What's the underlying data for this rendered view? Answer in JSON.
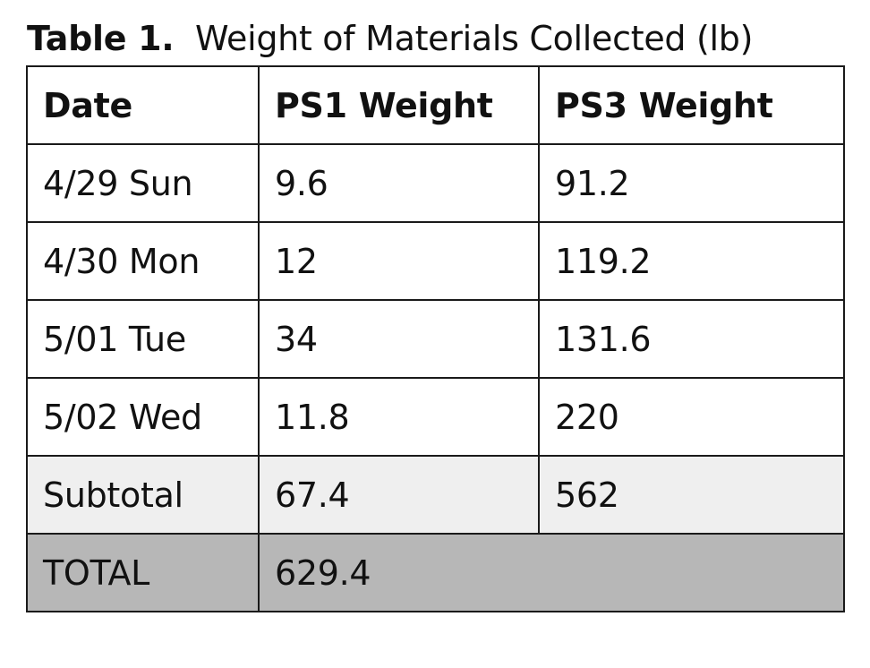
{
  "caption": {
    "label": "Table 1.",
    "text": "Weight of Materials Collected (lb)"
  },
  "table": {
    "headers": [
      "Date",
      "PS1 Weight",
      "PS3 Weight"
    ],
    "rows": [
      [
        "4/29 Sun",
        "9.6",
        "91.2"
      ],
      [
        "4/30 Mon",
        "12",
        "119.2"
      ],
      [
        "5/01 Tue",
        "34",
        "131.6"
      ],
      [
        "5/02 Wed",
        "11.8",
        "220"
      ]
    ],
    "subtotal": [
      "Subtotal",
      "67.4",
      "562"
    ],
    "total": [
      "TOTAL",
      "629.4"
    ]
  },
  "colors": {
    "border": "#1a1a1a",
    "subtotal_bg": "#efefef",
    "total_bg": "#b7b7b7"
  }
}
